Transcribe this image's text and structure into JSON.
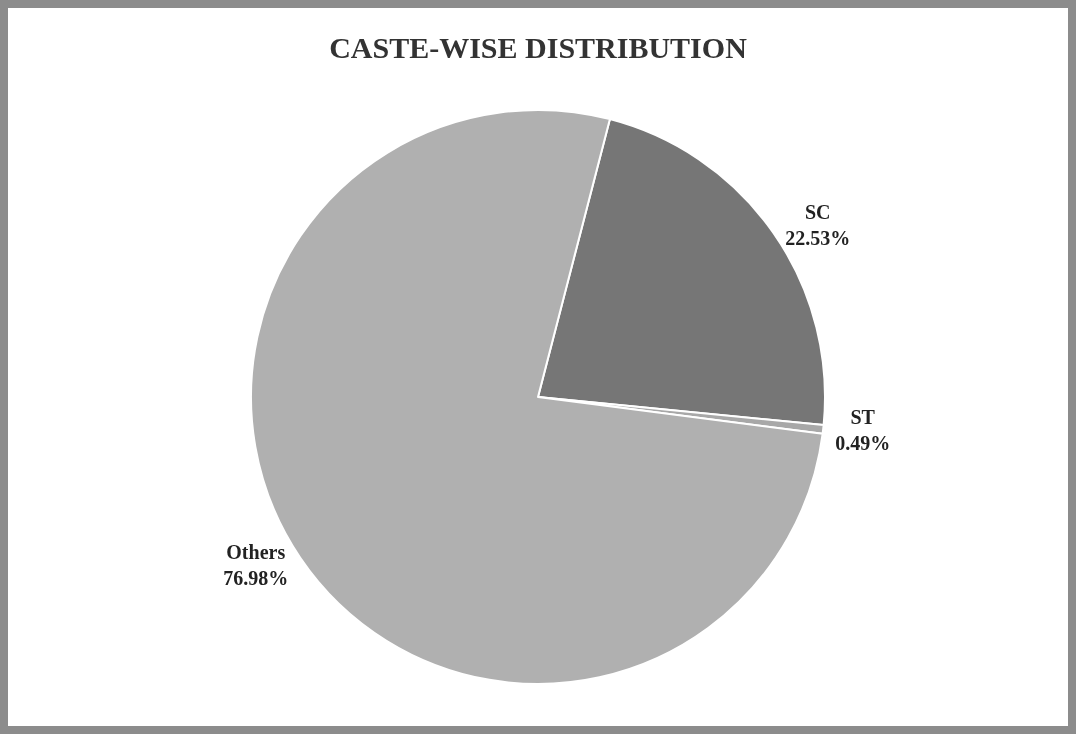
{
  "chart_data": {
    "type": "pie",
    "title": "CASTE-WISE DISTRIBUTION",
    "categories": [
      "SC",
      "ST",
      "Others"
    ],
    "values": [
      22.53,
      0.49,
      76.98
    ],
    "colors": [
      "#767676",
      "#a8a8a8",
      "#b0b0b0"
    ],
    "value_labels": [
      "22.53%",
      "0.49%",
      "76.98%"
    ],
    "legend": false
  }
}
